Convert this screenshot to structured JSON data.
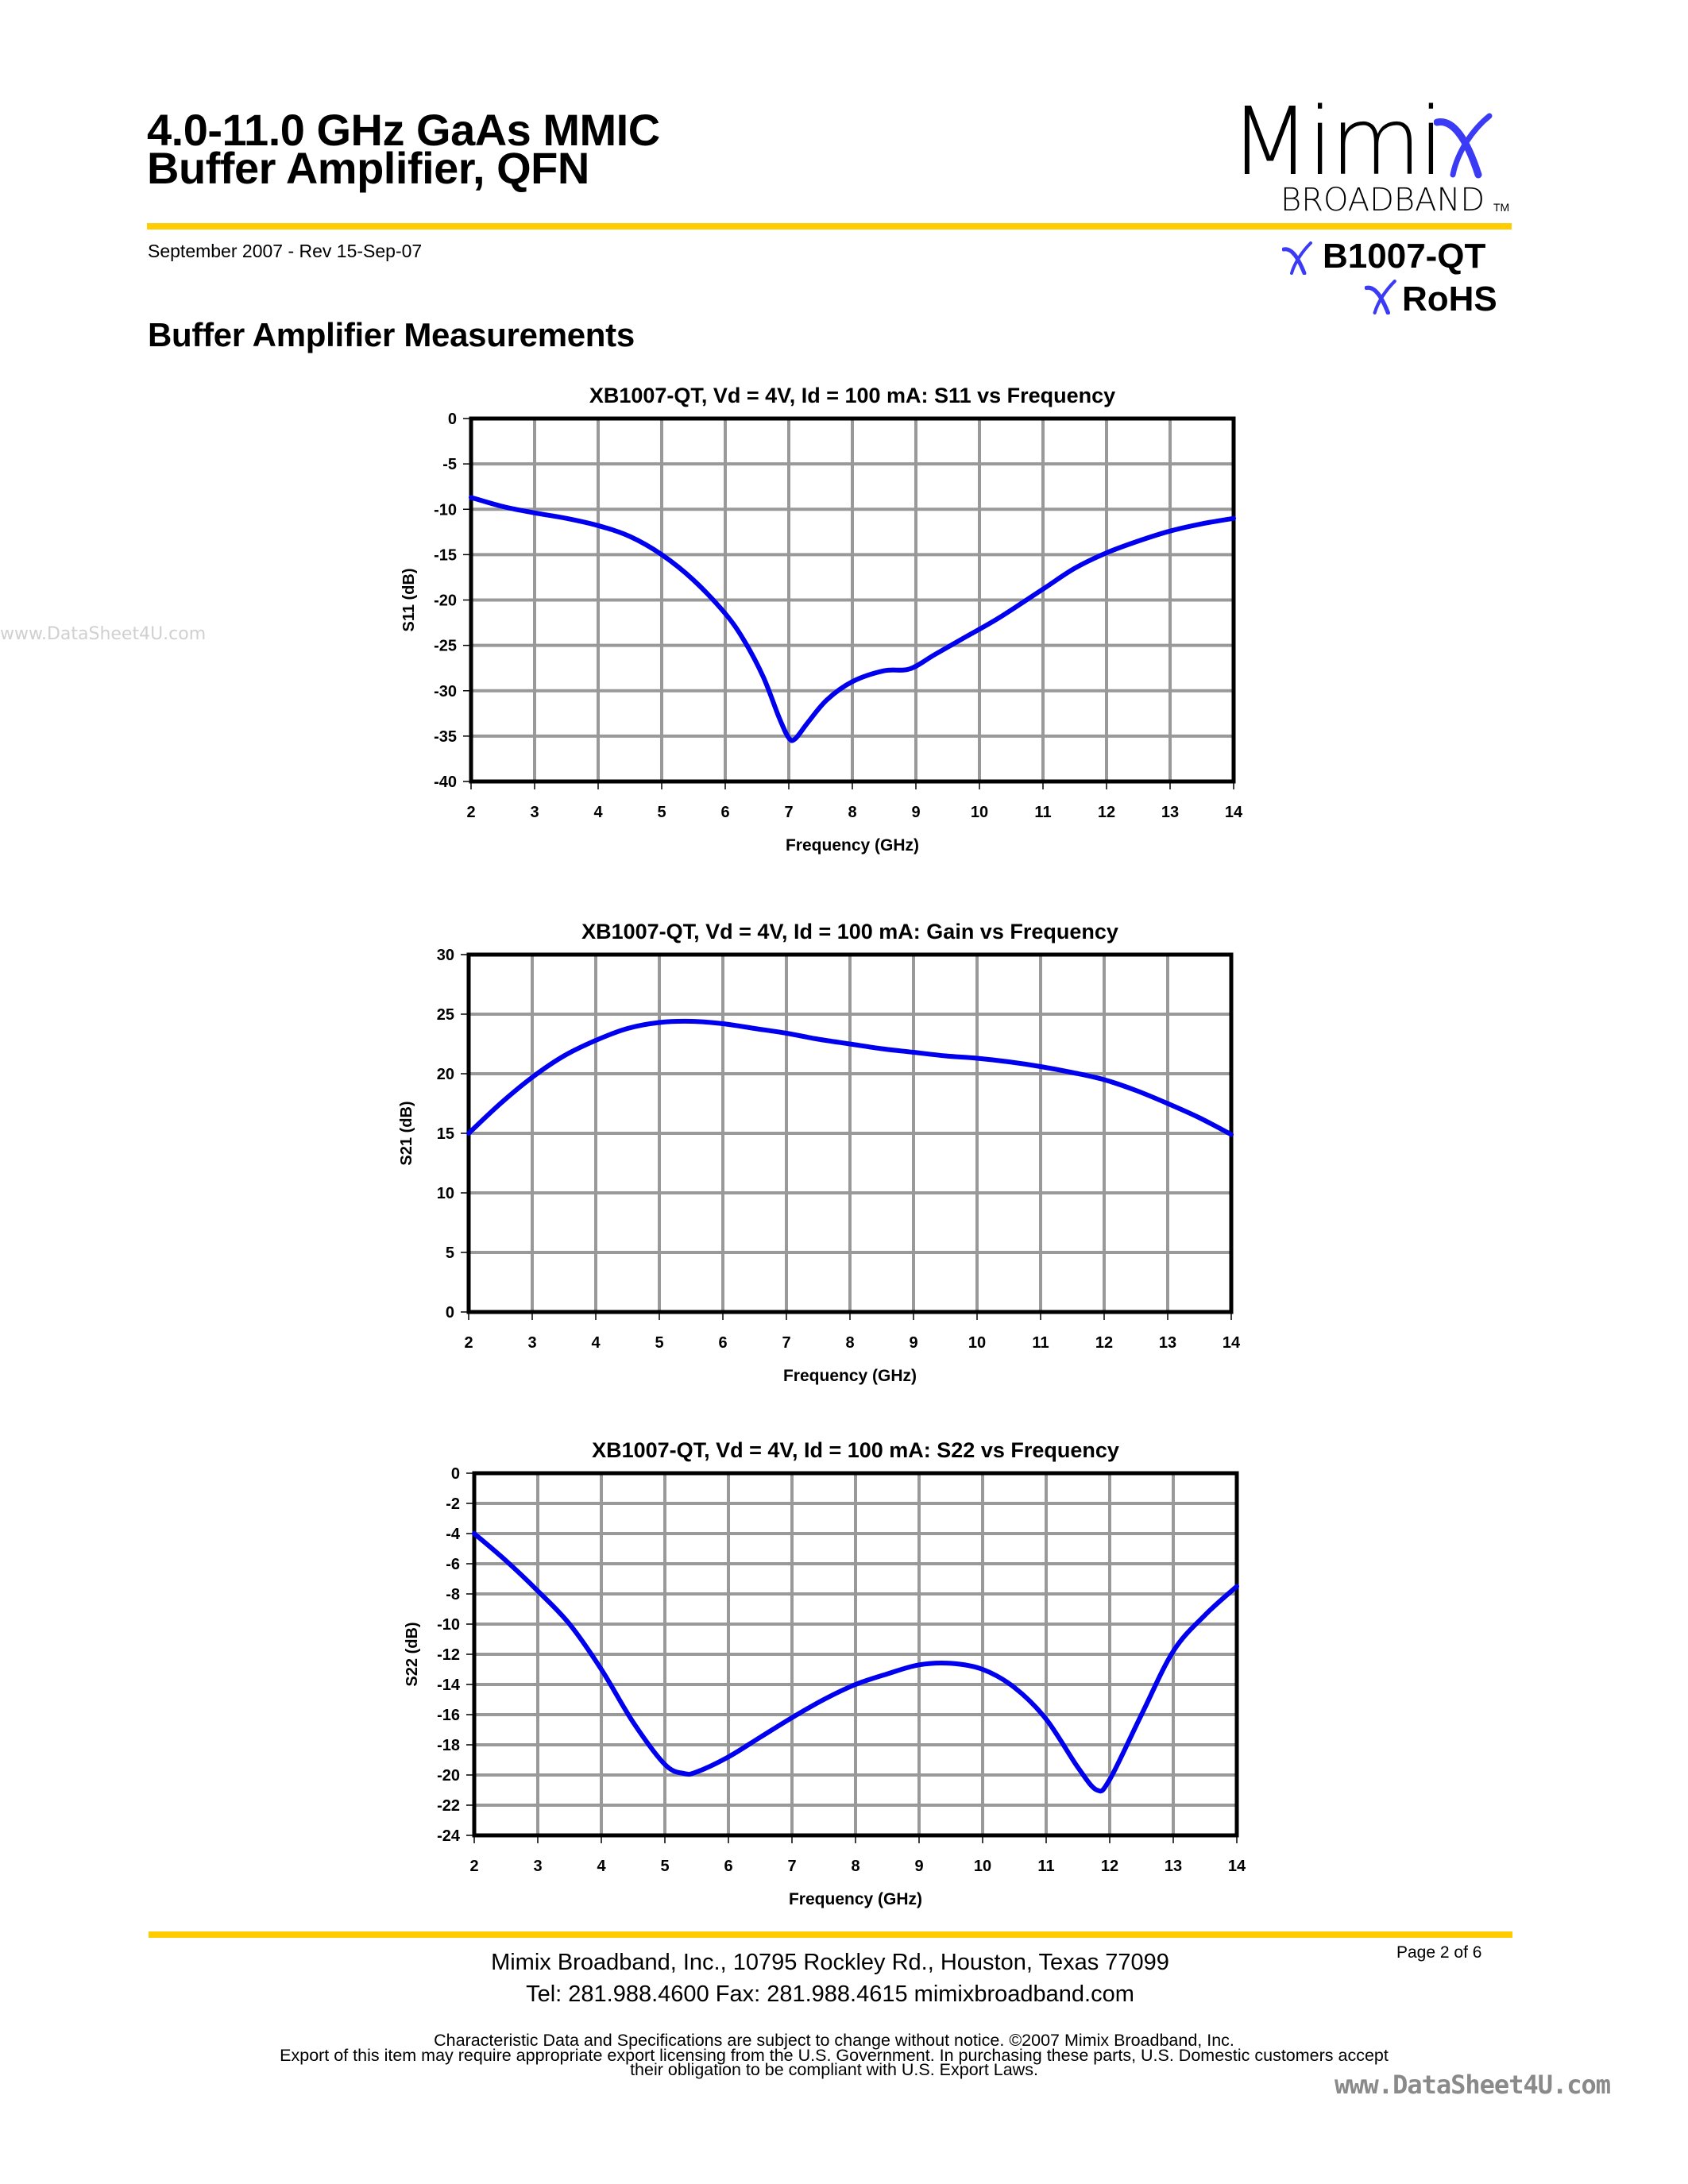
{
  "header": {
    "title_line1": "4.0-11.0 GHz GaAs MMIC",
    "title_line2": "Buffer Amplifier, QFN",
    "date": "September 2007 - Rev 15-Sep-07",
    "logo_word": "Mimi",
    "logo_sub": "BROADBAND",
    "logo_tm": "TM",
    "part_number": "B1007-QT",
    "rohs": "RoHS",
    "accent_color": "#ffcc00",
    "logo_x_color": "#3b3bf5"
  },
  "section_title": "Buffer Amplifier Measurements",
  "watermarks": {
    "left": "www.DataSheet4U.com",
    "bottom": "www.DataSheet4U.com"
  },
  "footer": {
    "address": "Mimix Broadband, Inc., 10795 Rockley Rd., Houston, Texas 77099",
    "contact": "Tel: 281.988.4600  Fax: 281.988.4615  mimixbroadband.com",
    "page": "Page 2 of 6",
    "legal_line1": "Characteristic Data and Specifications are subject to change without notice. ©2007 Mimix Broadband, Inc.",
    "legal_line2": "Export of this item may require appropriate export licensing from the U.S. Government. In purchasing these parts, U.S. Domestic customers accept",
    "legal_line3": "their obligation to be compliant with U.S. Export Laws."
  },
  "chart_data": [
    {
      "type": "line",
      "title": "XB1007-QT, Vd = 4V, Id = 100 mA: S11 vs Frequency",
      "xlabel": "Frequency (GHz)",
      "ylabel": "S11 (dB)",
      "xlim": [
        2,
        14
      ],
      "ylim": [
        -40,
        0
      ],
      "xticks": [
        2,
        3,
        4,
        5,
        6,
        7,
        8,
        9,
        10,
        11,
        12,
        13,
        14
      ],
      "yticks": [
        0,
        -5,
        -10,
        -15,
        -20,
        -25,
        -30,
        -35,
        -40
      ],
      "grid": true,
      "line_color": "#0000ee",
      "series": [
        {
          "name": "S11",
          "x": [
            2,
            2.5,
            3,
            3.5,
            4,
            4.5,
            5,
            5.5,
            6,
            6.3,
            6.6,
            6.85,
            7.0,
            7.1,
            7.3,
            7.6,
            8.0,
            8.5,
            8.9,
            9.3,
            9.8,
            10.3,
            11,
            11.5,
            12,
            12.5,
            13,
            13.5,
            14
          ],
          "values": [
            -8.7,
            -9.7,
            -10.4,
            -11.0,
            -11.8,
            -13.0,
            -15.0,
            -17.8,
            -21.5,
            -24.5,
            -28.5,
            -33.0,
            -35.2,
            -35.3,
            -33.5,
            -31.0,
            -29.0,
            -27.8,
            -27.6,
            -26.0,
            -24.0,
            -22.0,
            -18.8,
            -16.5,
            -14.8,
            -13.5,
            -12.4,
            -11.6,
            -11.0
          ]
        }
      ]
    },
    {
      "type": "line",
      "title": "XB1007-QT, Vd = 4V, Id = 100 mA: Gain vs Frequency",
      "xlabel": "Frequency (GHz)",
      "ylabel": "S21 (dB)",
      "xlim": [
        2,
        14
      ],
      "ylim": [
        0,
        30
      ],
      "xticks": [
        2,
        3,
        4,
        5,
        6,
        7,
        8,
        9,
        10,
        11,
        12,
        13,
        14
      ],
      "yticks": [
        30,
        25,
        20,
        15,
        10,
        5,
        0
      ],
      "grid": true,
      "line_color": "#0000ee",
      "series": [
        {
          "name": "S21",
          "x": [
            2,
            2.5,
            3,
            3.5,
            4,
            4.5,
            5,
            5.5,
            6,
            6.5,
            7,
            7.5,
            8,
            8.5,
            9,
            9.5,
            10,
            10.5,
            11,
            11.5,
            12,
            12.5,
            13,
            13.5,
            14
          ],
          "values": [
            15.0,
            17.5,
            19.7,
            21.5,
            22.8,
            23.8,
            24.3,
            24.4,
            24.2,
            23.8,
            23.4,
            22.9,
            22.5,
            22.1,
            21.8,
            21.5,
            21.3,
            21.0,
            20.6,
            20.1,
            19.5,
            18.6,
            17.5,
            16.3,
            14.9
          ]
        }
      ]
    },
    {
      "type": "line",
      "title": "XB1007-QT, Vd = 4V, Id = 100 mA: S22 vs Frequency",
      "xlabel": "Frequency (GHz)",
      "ylabel": "S22 (dB)",
      "xlim": [
        2,
        14
      ],
      "ylim": [
        -24,
        0
      ],
      "xticks": [
        2,
        3,
        4,
        5,
        6,
        7,
        8,
        9,
        10,
        11,
        12,
        13,
        14
      ],
      "yticks": [
        0,
        -2,
        -4,
        -6,
        -8,
        -10,
        -12,
        -14,
        -16,
        -18,
        -20,
        -22,
        -24
      ],
      "grid": true,
      "line_color": "#0000ee",
      "series": [
        {
          "name": "S22",
          "x": [
            2,
            2.5,
            3,
            3.5,
            4,
            4.5,
            5,
            5.3,
            5.5,
            6,
            6.5,
            7,
            7.5,
            8,
            8.5,
            9,
            9.5,
            10,
            10.5,
            11,
            11.5,
            11.8,
            12,
            12.5,
            13,
            13.5,
            14
          ],
          "values": [
            -4.0,
            -5.8,
            -7.8,
            -10.0,
            -13.0,
            -16.5,
            -19.3,
            -19.9,
            -19.8,
            -18.8,
            -17.5,
            -16.2,
            -15.0,
            -14.0,
            -13.3,
            -12.7,
            -12.6,
            -13.0,
            -14.2,
            -16.3,
            -19.5,
            -21.0,
            -20.3,
            -16.0,
            -11.8,
            -9.4,
            -7.5
          ]
        }
      ]
    }
  ]
}
